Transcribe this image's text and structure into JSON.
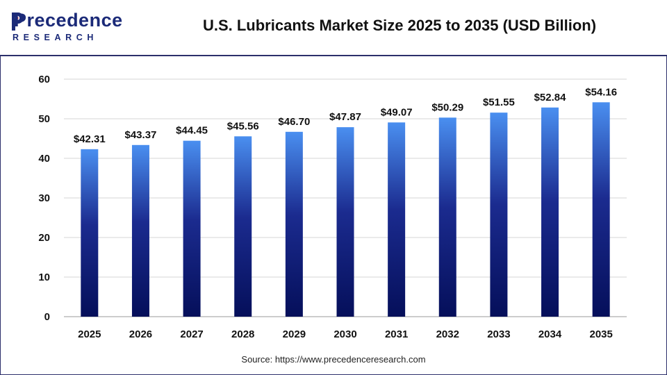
{
  "brand": {
    "name": "Precedence",
    "tagline": "RESEARCH",
    "color": "#1b2a78",
    "accent": "#e5373a"
  },
  "header": {
    "title": "U.S. Lubricants Market Size 2025 to 2035 (USD Billion)"
  },
  "source": "Source: https://www.precedenceresearch.com",
  "chart_data": {
    "type": "bar",
    "title": "U.S. Lubricants Market Size 2025 to 2035 (USD Billion)",
    "xlabel": "",
    "ylabel": "",
    "categories": [
      "2025",
      "2026",
      "2027",
      "2028",
      "2029",
      "2030",
      "2031",
      "2032",
      "2033",
      "2034",
      "2035"
    ],
    "values": [
      42.31,
      43.37,
      44.45,
      45.56,
      46.7,
      47.87,
      49.07,
      50.29,
      51.55,
      52.84,
      54.16
    ],
    "data_labels": [
      "$42.31",
      "$43.37",
      "$44.45",
      "$45.56",
      "$46.70",
      "$47.87",
      "$49.07",
      "$50.29",
      "$51.55",
      "$52.84",
      "$54.16"
    ],
    "ylim": [
      0,
      60
    ],
    "yticks": [
      0,
      10,
      20,
      30,
      40,
      50,
      60
    ],
    "grid": true,
    "legend": "none",
    "colors": {
      "bar_top": "#4a8ff0",
      "bar_mid": "#1b2b8f",
      "bar_bottom": "#050f5a",
      "grid": "#d6d6d6"
    }
  }
}
